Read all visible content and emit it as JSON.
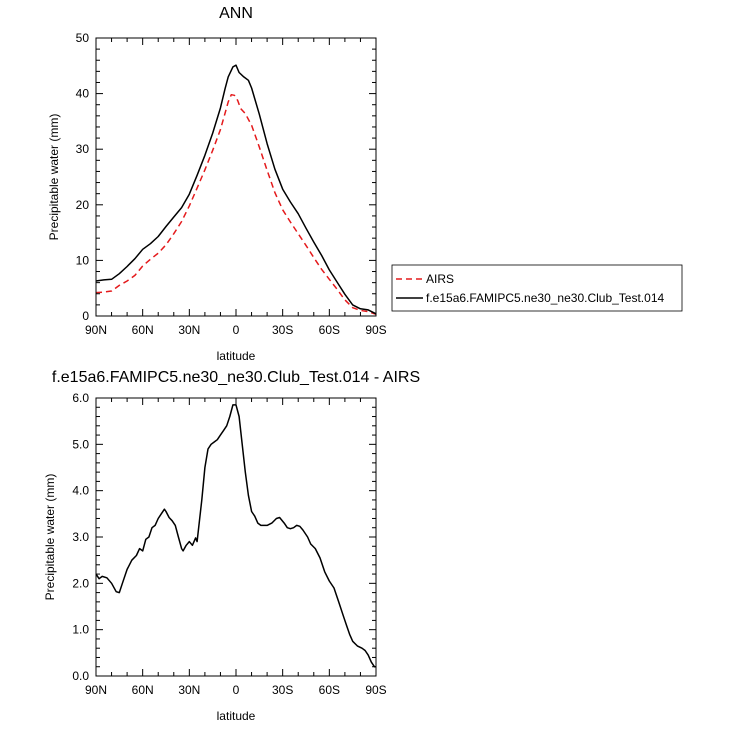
{
  "chart_data": [
    {
      "type": "line",
      "title": "ANN",
      "xlabel": "latitude",
      "ylabel": "Precipitable water (mm)",
      "xlim": [
        90,
        -90
      ],
      "ylim": [
        0,
        50
      ],
      "x_ticks": [
        90,
        60,
        30,
        0,
        -30,
        -60,
        -90
      ],
      "x_tick_labels": [
        "90N",
        "60N",
        "30N",
        "0",
        "30S",
        "60S",
        "90S"
      ],
      "y_ticks": [
        0,
        10,
        20,
        30,
        40,
        50
      ],
      "y_tick_labels": [
        "0",
        "10",
        "20",
        "30",
        "40",
        "50"
      ],
      "legend_position": "right",
      "series": [
        {
          "name": "AIRS",
          "color": "#e41a1c",
          "dash": "dashed",
          "points": [
            [
              90,
              4.2
            ],
            [
              85,
              4.3
            ],
            [
              80,
              4.5
            ],
            [
              75,
              5.5
            ],
            [
              70,
              6.3
            ],
            [
              65,
              7.3
            ],
            [
              60,
              9.0
            ],
            [
              55,
              10.2
            ],
            [
              50,
              11.3
            ],
            [
              45,
              12.8
            ],
            [
              40,
              14.8
            ],
            [
              35,
              17.0
            ],
            [
              30,
              19.8
            ],
            [
              25,
              23.0
            ],
            [
              20,
              26.3
            ],
            [
              15,
              29.8
            ],
            [
              10,
              33.5
            ],
            [
              7,
              36.5
            ],
            [
              5,
              38.5
            ],
            [
              3,
              39.8
            ],
            [
              1,
              39.7
            ],
            [
              -1,
              38.8
            ],
            [
              -3,
              37.3
            ],
            [
              -6,
              36.4
            ],
            [
              -10,
              34.3
            ],
            [
              -15,
              30.4
            ],
            [
              -20,
              26.2
            ],
            [
              -25,
              22.2
            ],
            [
              -30,
              19.1
            ],
            [
              -35,
              16.9
            ],
            [
              -40,
              14.8
            ],
            [
              -45,
              12.7
            ],
            [
              -50,
              10.5
            ],
            [
              -55,
              8.4
            ],
            [
              -60,
              6.6
            ],
            [
              -65,
              4.8
            ],
            [
              -70,
              2.9
            ],
            [
              -75,
              1.5
            ],
            [
              -80,
              1.0
            ],
            [
              -85,
              0.8
            ],
            [
              -90,
              0.3
            ]
          ]
        },
        {
          "name": "f.e15a6.FAMIPC5.ne30_ne30.Club_Test.014",
          "color": "#000000",
          "dash": "solid",
          "points": [
            [
              90,
              6.3
            ],
            [
              85,
              6.5
            ],
            [
              80,
              6.6
            ],
            [
              75,
              7.6
            ],
            [
              70,
              8.9
            ],
            [
              65,
              10.3
            ],
            [
              60,
              12.0
            ],
            [
              55,
              13.0
            ],
            [
              50,
              14.3
            ],
            [
              45,
              16.1
            ],
            [
              40,
              17.8
            ],
            [
              35,
              19.5
            ],
            [
              30,
              21.9
            ],
            [
              25,
              25.3
            ],
            [
              20,
              28.9
            ],
            [
              15,
              32.9
            ],
            [
              10,
              37.4
            ],
            [
              7,
              40.9
            ],
            [
              5,
              43.0
            ],
            [
              2,
              44.8
            ],
            [
              0,
              45.1
            ],
            [
              -2,
              43.8
            ],
            [
              -5,
              43.0
            ],
            [
              -8,
              42.4
            ],
            [
              -10,
              41.0
            ],
            [
              -15,
              36.3
            ],
            [
              -20,
              31.0
            ],
            [
              -25,
              26.4
            ],
            [
              -30,
              22.8
            ],
            [
              -35,
              20.5
            ],
            [
              -40,
              18.4
            ],
            [
              -45,
              15.8
            ],
            [
              -50,
              13.3
            ],
            [
              -55,
              10.9
            ],
            [
              -60,
              8.3
            ],
            [
              -65,
              6.1
            ],
            [
              -70,
              3.9
            ],
            [
              -75,
              2.0
            ],
            [
              -80,
              1.3
            ],
            [
              -85,
              1.1
            ],
            [
              -90,
              0.4
            ]
          ]
        }
      ]
    },
    {
      "type": "line",
      "title": "f.e15a6.FAMIPC5.ne30_ne30.Club_Test.014 - AIRS",
      "xlabel": "latitude",
      "ylabel": "Precipitable water (mm)",
      "xlim": [
        90,
        -90
      ],
      "ylim": [
        0,
        6
      ],
      "x_ticks": [
        90,
        60,
        30,
        0,
        -30,
        -60,
        -90
      ],
      "x_tick_labels": [
        "90N",
        "60N",
        "30N",
        "0",
        "30S",
        "60S",
        "90S"
      ],
      "y_ticks": [
        0,
        1,
        2,
        3,
        4,
        5,
        6
      ],
      "y_tick_labels": [
        "0.0",
        "1.0",
        "2.0",
        "3.0",
        "4.0",
        "5.0",
        "6.0"
      ],
      "series": [
        {
          "color": "#000000",
          "dash": "solid",
          "points": [
            [
              90,
              2.2
            ],
            [
              88,
              2.1
            ],
            [
              86,
              2.15
            ],
            [
              83,
              2.12
            ],
            [
              80,
              2.0
            ],
            [
              77,
              1.82
            ],
            [
              75,
              1.8
            ],
            [
              73,
              2.0
            ],
            [
              70,
              2.3
            ],
            [
              67,
              2.5
            ],
            [
              64,
              2.6
            ],
            [
              62,
              2.75
            ],
            [
              60,
              2.7
            ],
            [
              58,
              2.95
            ],
            [
              56,
              3.0
            ],
            [
              54,
              3.2
            ],
            [
              52,
              3.25
            ],
            [
              50,
              3.4
            ],
            [
              48,
              3.5
            ],
            [
              46,
              3.6
            ],
            [
              45,
              3.55
            ],
            [
              43,
              3.42
            ],
            [
              41,
              3.35
            ],
            [
              39,
              3.25
            ],
            [
              37,
              3.0
            ],
            [
              35,
              2.75
            ],
            [
              34,
              2.7
            ],
            [
              32,
              2.82
            ],
            [
              30,
              2.9
            ],
            [
              28,
              2.82
            ],
            [
              26,
              2.98
            ],
            [
              25,
              2.9
            ],
            [
              22,
              3.8
            ],
            [
              20,
              4.5
            ],
            [
              18,
              4.9
            ],
            [
              16,
              5.0
            ],
            [
              14,
              5.05
            ],
            [
              12,
              5.1
            ],
            [
              10,
              5.2
            ],
            [
              8,
              5.3
            ],
            [
              6,
              5.4
            ],
            [
              4,
              5.6
            ],
            [
              2,
              5.85
            ],
            [
              0,
              5.85
            ],
            [
              -2,
              5.6
            ],
            [
              -4,
              5.0
            ],
            [
              -6,
              4.4
            ],
            [
              -8,
              3.9
            ],
            [
              -10,
              3.55
            ],
            [
              -12,
              3.45
            ],
            [
              -14,
              3.3
            ],
            [
              -16,
              3.25
            ],
            [
              -20,
              3.25
            ],
            [
              -23,
              3.3
            ],
            [
              -26,
              3.4
            ],
            [
              -28,
              3.42
            ],
            [
              -31,
              3.3
            ],
            [
              -33,
              3.2
            ],
            [
              -35,
              3.18
            ],
            [
              -37,
              3.2
            ],
            [
              -39,
              3.25
            ],
            [
              -41,
              3.23
            ],
            [
              -43,
              3.15
            ],
            [
              -46,
              3.0
            ],
            [
              -48,
              2.85
            ],
            [
              -51,
              2.75
            ],
            [
              -54,
              2.55
            ],
            [
              -57,
              2.25
            ],
            [
              -60,
              2.05
            ],
            [
              -63,
              1.9
            ],
            [
              -66,
              1.6
            ],
            [
              -69,
              1.3
            ],
            [
              -71,
              1.1
            ],
            [
              -73,
              0.9
            ],
            [
              -75,
              0.75
            ],
            [
              -78,
              0.65
            ],
            [
              -81,
              0.6
            ],
            [
              -83,
              0.55
            ],
            [
              -85,
              0.45
            ],
            [
              -87,
              0.3
            ],
            [
              -89,
              0.2
            ],
            [
              -90,
              0.2
            ]
          ]
        }
      ]
    }
  ]
}
